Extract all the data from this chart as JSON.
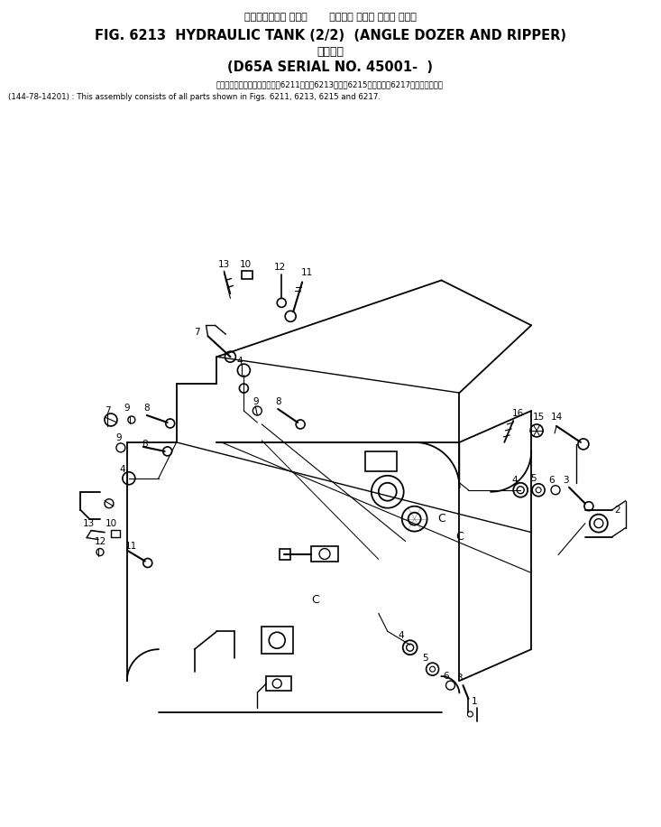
{
  "title_jp_line1": "ハイドロリック タンク       アングル ドーザ および リッパ",
  "title_en": "FIG. 6213  HYDRAULIC TANK (2/2)  (ANGLE DOZER AND RIPPER)",
  "title_jp_line3": "適用号機",
  "title_serial": "(D65A SERIAL NO. 45001-  )",
  "note_jp": "このアセンブリの構成部品は目6211図、目6213図、目6215図および目6217図を含みます。",
  "note_en": "(144-78-14201) : This assembly consists of all parts shown in Figs. 6211, 6213, 6215 and 6217.",
  "bg_color": "#ffffff",
  "line_color": "#000000",
  "fig_width": 7.33,
  "fig_height": 9.16
}
